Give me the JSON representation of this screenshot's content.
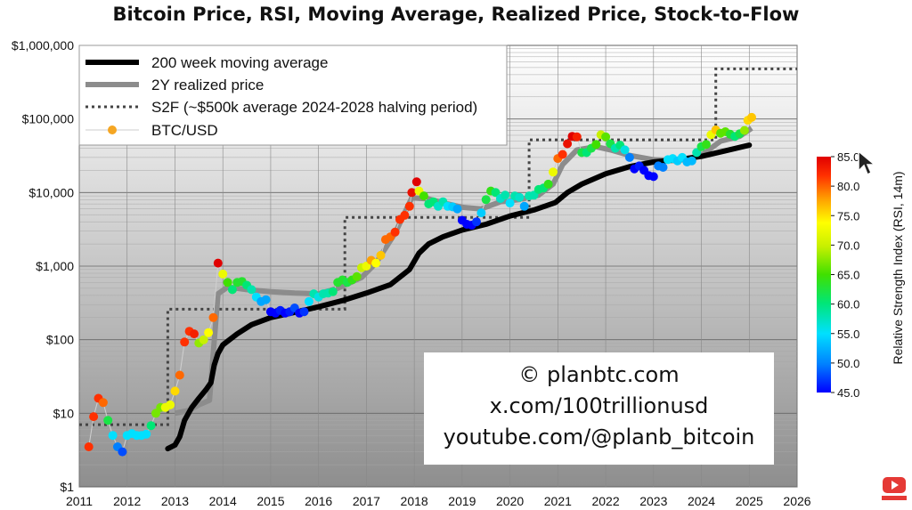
{
  "chart_data": {
    "type": "scatter",
    "title": "Bitcoin Price, RSI, Moving Average, Realized Price, Stock-to-Flow",
    "y_scale": "log",
    "xlim": [
      2011,
      2026
    ],
    "ylim": [
      1,
      1000000
    ],
    "x_ticks": [
      "2011",
      "2012",
      "2013",
      "2014",
      "2015",
      "2016",
      "2017",
      "2018",
      "2019",
      "2020",
      "2021",
      "2022",
      "2023",
      "2024",
      "2025",
      "2026"
    ],
    "y_ticks": [
      {
        "value": 1,
        "label": "$1"
      },
      {
        "value": 10,
        "label": "$10"
      },
      {
        "value": 100,
        "label": "$100"
      },
      {
        "value": 1000,
        "label": "$1,000"
      },
      {
        "value": 10000,
        "label": "$10,000"
      },
      {
        "value": 100000,
        "label": "$100,000"
      },
      {
        "value": 1000000,
        "label": "$1,000,000"
      }
    ],
    "grid": true,
    "legend_position": "top-left",
    "colorbar": {
      "label": "Relative Strength Index (RSI, 14m)",
      "min": 45,
      "max": 85,
      "ticks": [
        "45.0",
        "50.0",
        "55.0",
        "60.0",
        "65.0",
        "70.0",
        "75.0",
        "80.0",
        "85.0"
      ]
    },
    "series": [
      {
        "name": "200 week moving average",
        "style": "line",
        "color": "#000000",
        "points": [
          [
            2012.85,
            3.3
          ],
          [
            2013.0,
            3.7
          ],
          [
            2013.1,
            4.8
          ],
          [
            2013.2,
            8
          ],
          [
            2013.35,
            12
          ],
          [
            2013.5,
            16
          ],
          [
            2013.65,
            21
          ],
          [
            2013.75,
            26
          ],
          [
            2013.82,
            45
          ],
          [
            2013.9,
            65
          ],
          [
            2014.0,
            85
          ],
          [
            2014.3,
            120
          ],
          [
            2014.6,
            160
          ],
          [
            2015.0,
            200
          ],
          [
            2015.5,
            235
          ],
          [
            2016.0,
            280
          ],
          [
            2016.5,
            340
          ],
          [
            2017.0,
            430
          ],
          [
            2017.5,
            560
          ],
          [
            2017.9,
            900
          ],
          [
            2018.1,
            1500
          ],
          [
            2018.3,
            2000
          ],
          [
            2018.6,
            2500
          ],
          [
            2019.0,
            3100
          ],
          [
            2019.5,
            3700
          ],
          [
            2020.0,
            4800
          ],
          [
            2020.5,
            5800
          ],
          [
            2020.95,
            7300
          ],
          [
            2021.2,
            10000
          ],
          [
            2021.5,
            13000
          ],
          [
            2022.0,
            18000
          ],
          [
            2022.5,
            22500
          ],
          [
            2023.0,
            26000
          ],
          [
            2023.5,
            28000
          ],
          [
            2024.0,
            31000
          ],
          [
            2024.5,
            37000
          ],
          [
            2025.0,
            44000
          ]
        ]
      },
      {
        "name": "2Y realized price",
        "style": "line",
        "color": "#8c8c8c",
        "points": [
          [
            2013.0,
            10
          ],
          [
            2013.3,
            11
          ],
          [
            2013.5,
            13
          ],
          [
            2013.72,
            15
          ],
          [
            2013.9,
            420
          ],
          [
            2014.1,
            520
          ],
          [
            2014.5,
            480
          ],
          [
            2015.0,
            450
          ],
          [
            2015.5,
            430
          ],
          [
            2016.0,
            420
          ],
          [
            2016.4,
            500
          ],
          [
            2016.9,
            700
          ],
          [
            2017.2,
            1100
          ],
          [
            2017.6,
            2800
          ],
          [
            2017.95,
            8500
          ],
          [
            2018.3,
            8200
          ],
          [
            2018.7,
            7000
          ],
          [
            2019.0,
            6300
          ],
          [
            2019.4,
            6000
          ],
          [
            2019.8,
            7500
          ],
          [
            2020.2,
            8000
          ],
          [
            2020.6,
            9200
          ],
          [
            2020.9,
            13000
          ],
          [
            2021.1,
            24000
          ],
          [
            2021.4,
            38000
          ],
          [
            2021.8,
            42000
          ],
          [
            2022.1,
            38000
          ],
          [
            2022.5,
            32000
          ],
          [
            2023.0,
            28000
          ],
          [
            2023.5,
            27000
          ],
          [
            2024.0,
            32000
          ],
          [
            2024.4,
            50000
          ],
          [
            2024.8,
            58000
          ],
          [
            2025.05,
            75000
          ]
        ]
      },
      {
        "name": "S2F (~$500k average 2024-2028 halving period)",
        "style": "dotted-step",
        "color": "#444444",
        "points": [
          [
            2011.0,
            7
          ],
          [
            2012.85,
            7
          ],
          [
            2012.85,
            260
          ],
          [
            2016.55,
            260
          ],
          [
            2016.55,
            4600
          ],
          [
            2020.4,
            4600
          ],
          [
            2020.4,
            52000
          ],
          [
            2024.3,
            52000
          ],
          [
            2024.3,
            480000
          ],
          [
            2026.0,
            480000
          ]
        ]
      },
      {
        "name": "BTC/USD",
        "style": "markers",
        "color": "#f5a623",
        "points": [
          [
            2011.2,
            3.5,
            82
          ],
          [
            2011.3,
            9,
            82
          ],
          [
            2011.4,
            16,
            82
          ],
          [
            2011.5,
            14,
            80
          ],
          [
            2011.6,
            8,
            62
          ],
          [
            2011.7,
            5,
            55
          ],
          [
            2011.8,
            3.5,
            50
          ],
          [
            2011.9,
            3,
            48
          ],
          [
            2012.0,
            5,
            55
          ],
          [
            2012.1,
            5.3,
            55
          ],
          [
            2012.2,
            5,
            55
          ],
          [
            2012.3,
            5,
            55
          ],
          [
            2012.4,
            5.2,
            55
          ],
          [
            2012.5,
            6.8,
            60
          ],
          [
            2012.6,
            10,
            67
          ],
          [
            2012.7,
            12,
            67
          ],
          [
            2012.8,
            12,
            72
          ],
          [
            2012.9,
            13,
            72
          ],
          [
            2013.0,
            20,
            75
          ],
          [
            2013.1,
            33,
            80
          ],
          [
            2013.2,
            93,
            82
          ],
          [
            2013.3,
            130,
            82
          ],
          [
            2013.4,
            120,
            83
          ],
          [
            2013.5,
            90,
            68
          ],
          [
            2013.6,
            100,
            70
          ],
          [
            2013.7,
            125,
            73
          ],
          [
            2013.8,
            200,
            80
          ],
          [
            2013.9,
            1100,
            85
          ],
          [
            2014.0,
            780,
            72
          ],
          [
            2014.1,
            600,
            65
          ],
          [
            2014.2,
            480,
            60
          ],
          [
            2014.3,
            600,
            63
          ],
          [
            2014.4,
            620,
            63
          ],
          [
            2014.5,
            550,
            60
          ],
          [
            2014.6,
            480,
            58
          ],
          [
            2014.7,
            380,
            55
          ],
          [
            2014.8,
            330,
            52
          ],
          [
            2014.9,
            350,
            52
          ],
          [
            2015.0,
            240,
            45
          ],
          [
            2015.1,
            230,
            45
          ],
          [
            2015.2,
            250,
            46
          ],
          [
            2015.3,
            230,
            45
          ],
          [
            2015.4,
            240,
            46
          ],
          [
            2015.5,
            270,
            48
          ],
          [
            2015.6,
            230,
            45
          ],
          [
            2015.7,
            240,
            47
          ],
          [
            2015.8,
            330,
            55
          ],
          [
            2015.9,
            420,
            58
          ],
          [
            2016.0,
            380,
            56
          ],
          [
            2016.1,
            420,
            58
          ],
          [
            2016.2,
            430,
            58
          ],
          [
            2016.3,
            450,
            60
          ],
          [
            2016.4,
            600,
            63
          ],
          [
            2016.5,
            650,
            63
          ],
          [
            2016.6,
            600,
            62
          ],
          [
            2016.7,
            650,
            64
          ],
          [
            2016.8,
            720,
            66
          ],
          [
            2016.9,
            950,
            70
          ],
          [
            2017.0,
            1000,
            72
          ],
          [
            2017.1,
            1200,
            78
          ],
          [
            2017.2,
            1100,
            73
          ],
          [
            2017.3,
            1400,
            76
          ],
          [
            2017.4,
            2300,
            80
          ],
          [
            2017.5,
            2500,
            80
          ],
          [
            2017.6,
            2900,
            82
          ],
          [
            2017.7,
            4300,
            82
          ],
          [
            2017.8,
            4900,
            82
          ],
          [
            2017.9,
            6500,
            82
          ],
          [
            2017.95,
            10000,
            84
          ],
          [
            2018.05,
            14000,
            85
          ],
          [
            2018.1,
            10500,
            72
          ],
          [
            2018.2,
            9000,
            65
          ],
          [
            2018.3,
            7000,
            60
          ],
          [
            2018.4,
            7500,
            60
          ],
          [
            2018.5,
            6500,
            57
          ],
          [
            2018.6,
            7500,
            58
          ],
          [
            2018.7,
            6500,
            55
          ],
          [
            2018.8,
            6400,
            54
          ],
          [
            2018.9,
            6000,
            52
          ],
          [
            2019.0,
            4200,
            45
          ],
          [
            2019.1,
            3700,
            45
          ],
          [
            2019.2,
            3600,
            45
          ],
          [
            2019.3,
            4000,
            47
          ],
          [
            2019.4,
            5300,
            54
          ],
          [
            2019.5,
            8000,
            62
          ],
          [
            2019.6,
            10500,
            64
          ],
          [
            2019.7,
            10000,
            60
          ],
          [
            2019.8,
            8300,
            57
          ],
          [
            2019.9,
            9200,
            58
          ],
          [
            2020.0,
            7200,
            55
          ],
          [
            2020.1,
            9000,
            58
          ],
          [
            2020.2,
            8600,
            57
          ],
          [
            2020.3,
            6500,
            52
          ],
          [
            2020.4,
            9000,
            58
          ],
          [
            2020.5,
            9200,
            58
          ],
          [
            2020.6,
            11000,
            60
          ],
          [
            2020.7,
            11500,
            60
          ],
          [
            2020.8,
            13000,
            64
          ],
          [
            2020.9,
            19000,
            72
          ],
          [
            2021.0,
            29000,
            80
          ],
          [
            2021.1,
            33000,
            82
          ],
          [
            2021.2,
            46000,
            84
          ],
          [
            2021.3,
            58000,
            85
          ],
          [
            2021.4,
            57000,
            83
          ],
          [
            2021.5,
            35000,
            62
          ],
          [
            2021.6,
            35000,
            60
          ],
          [
            2021.7,
            40000,
            62
          ],
          [
            2021.8,
            45000,
            65
          ],
          [
            2021.9,
            61000,
            70
          ],
          [
            2022.0,
            57000,
            66
          ],
          [
            2022.1,
            46000,
            62
          ],
          [
            2022.2,
            40000,
            58
          ],
          [
            2022.3,
            44000,
            60
          ],
          [
            2022.4,
            38000,
            56
          ],
          [
            2022.5,
            30000,
            50
          ],
          [
            2022.6,
            21000,
            45
          ],
          [
            2022.7,
            23000,
            46
          ],
          [
            2022.8,
            20000,
            45
          ],
          [
            2022.9,
            17000,
            45
          ],
          [
            2023.0,
            16500,
            45
          ],
          [
            2023.1,
            23000,
            50
          ],
          [
            2023.2,
            22000,
            50
          ],
          [
            2023.3,
            28000,
            55
          ],
          [
            2023.4,
            29000,
            55
          ],
          [
            2023.5,
            27000,
            54
          ],
          [
            2023.6,
            30000,
            55
          ],
          [
            2023.7,
            26000,
            53
          ],
          [
            2023.8,
            27000,
            53
          ],
          [
            2023.9,
            35000,
            58
          ],
          [
            2024.0,
            42000,
            62
          ],
          [
            2024.1,
            45000,
            64
          ],
          [
            2024.2,
            61000,
            72
          ],
          [
            2024.3,
            71000,
            76
          ],
          [
            2024.4,
            64000,
            66
          ],
          [
            2024.5,
            67000,
            66
          ],
          [
            2024.6,
            62000,
            63
          ],
          [
            2024.7,
            58000,
            60
          ],
          [
            2024.8,
            63000,
            62
          ],
          [
            2024.9,
            70000,
            68
          ],
          [
            2024.97,
            96000,
            75
          ],
          [
            2025.05,
            105000,
            76
          ]
        ]
      }
    ]
  },
  "credits": [
    "© planbtc.com",
    "x.com/100trillionusd",
    "youtube.com/@planb_bitcoin"
  ]
}
